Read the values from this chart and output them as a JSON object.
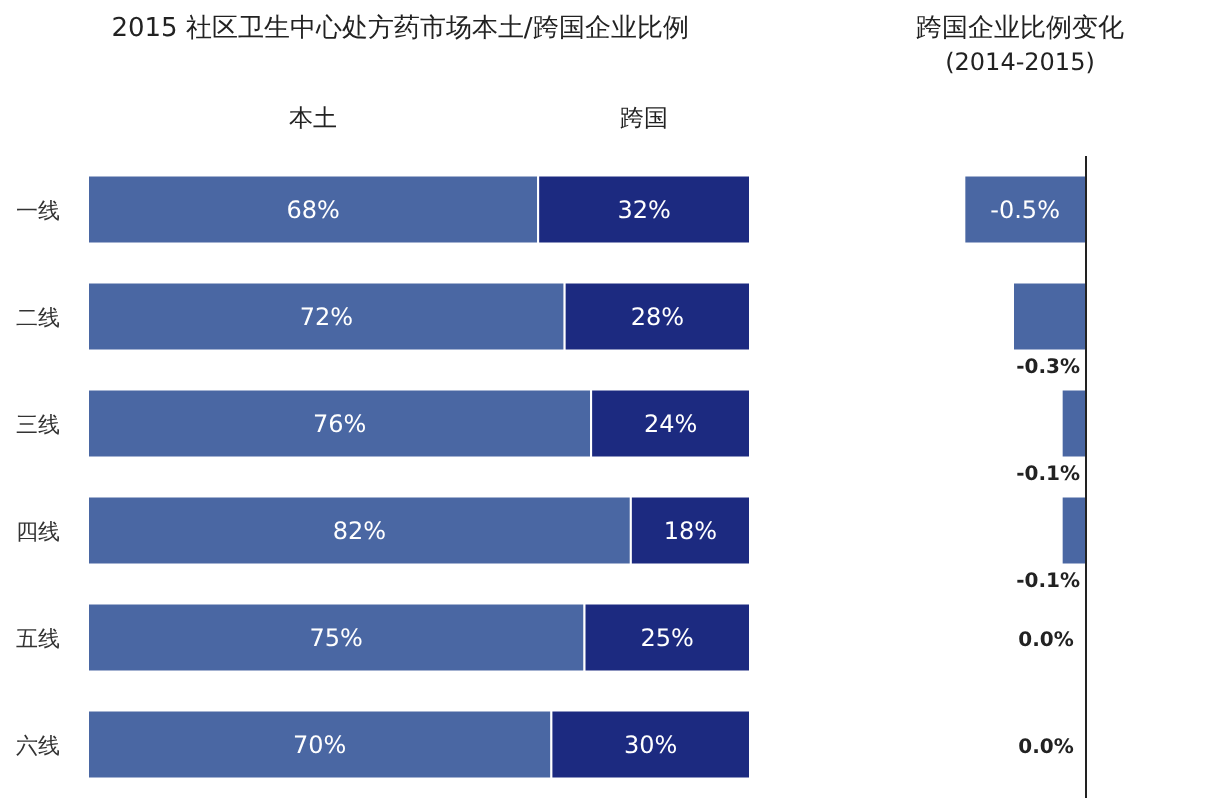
{
  "chart_data": [
    {
      "type": "bar",
      "orientation": "horizontal",
      "stacked": true,
      "title": "2015 社区卫生中心处方药市场本土/跨国企业比例",
      "categories": [
        "一线",
        "二线",
        "三线",
        "四线",
        "五线",
        "六线"
      ],
      "xlim": [
        0,
        100
      ],
      "tick_labels": "y",
      "series": [
        {
          "name": "本土",
          "color": "#4a67a3",
          "values": [
            68,
            72,
            76,
            82,
            75,
            70
          ],
          "value_labels": [
            "68%",
            "72%",
            "76%",
            "82%",
            "75%",
            "70%"
          ]
        },
        {
          "name": "跨国",
          "color": "#1c2a80",
          "values": [
            32,
            28,
            24,
            18,
            25,
            30
          ],
          "value_labels": [
            "32%",
            "28%",
            "24%",
            "18%",
            "25%",
            "30%"
          ]
        }
      ]
    },
    {
      "type": "bar",
      "orientation": "horizontal",
      "title": "跨国企业比例变化",
      "subtitle": "(2014-2015)",
      "categories": [
        null,
        null,
        null,
        null,
        null,
        null
      ],
      "tick_labels": false,
      "series": [
        {
          "color": "#4a67a3",
          "values": [
            -0.5,
            -0.3,
            -0.1,
            -0.1,
            0.0,
            0.0
          ],
          "value_labels": [
            "-0.5%",
            "-0.3%",
            "-0.1%",
            "-0.1%",
            "0.0%",
            "0.0%"
          ]
        }
      ]
    }
  ]
}
